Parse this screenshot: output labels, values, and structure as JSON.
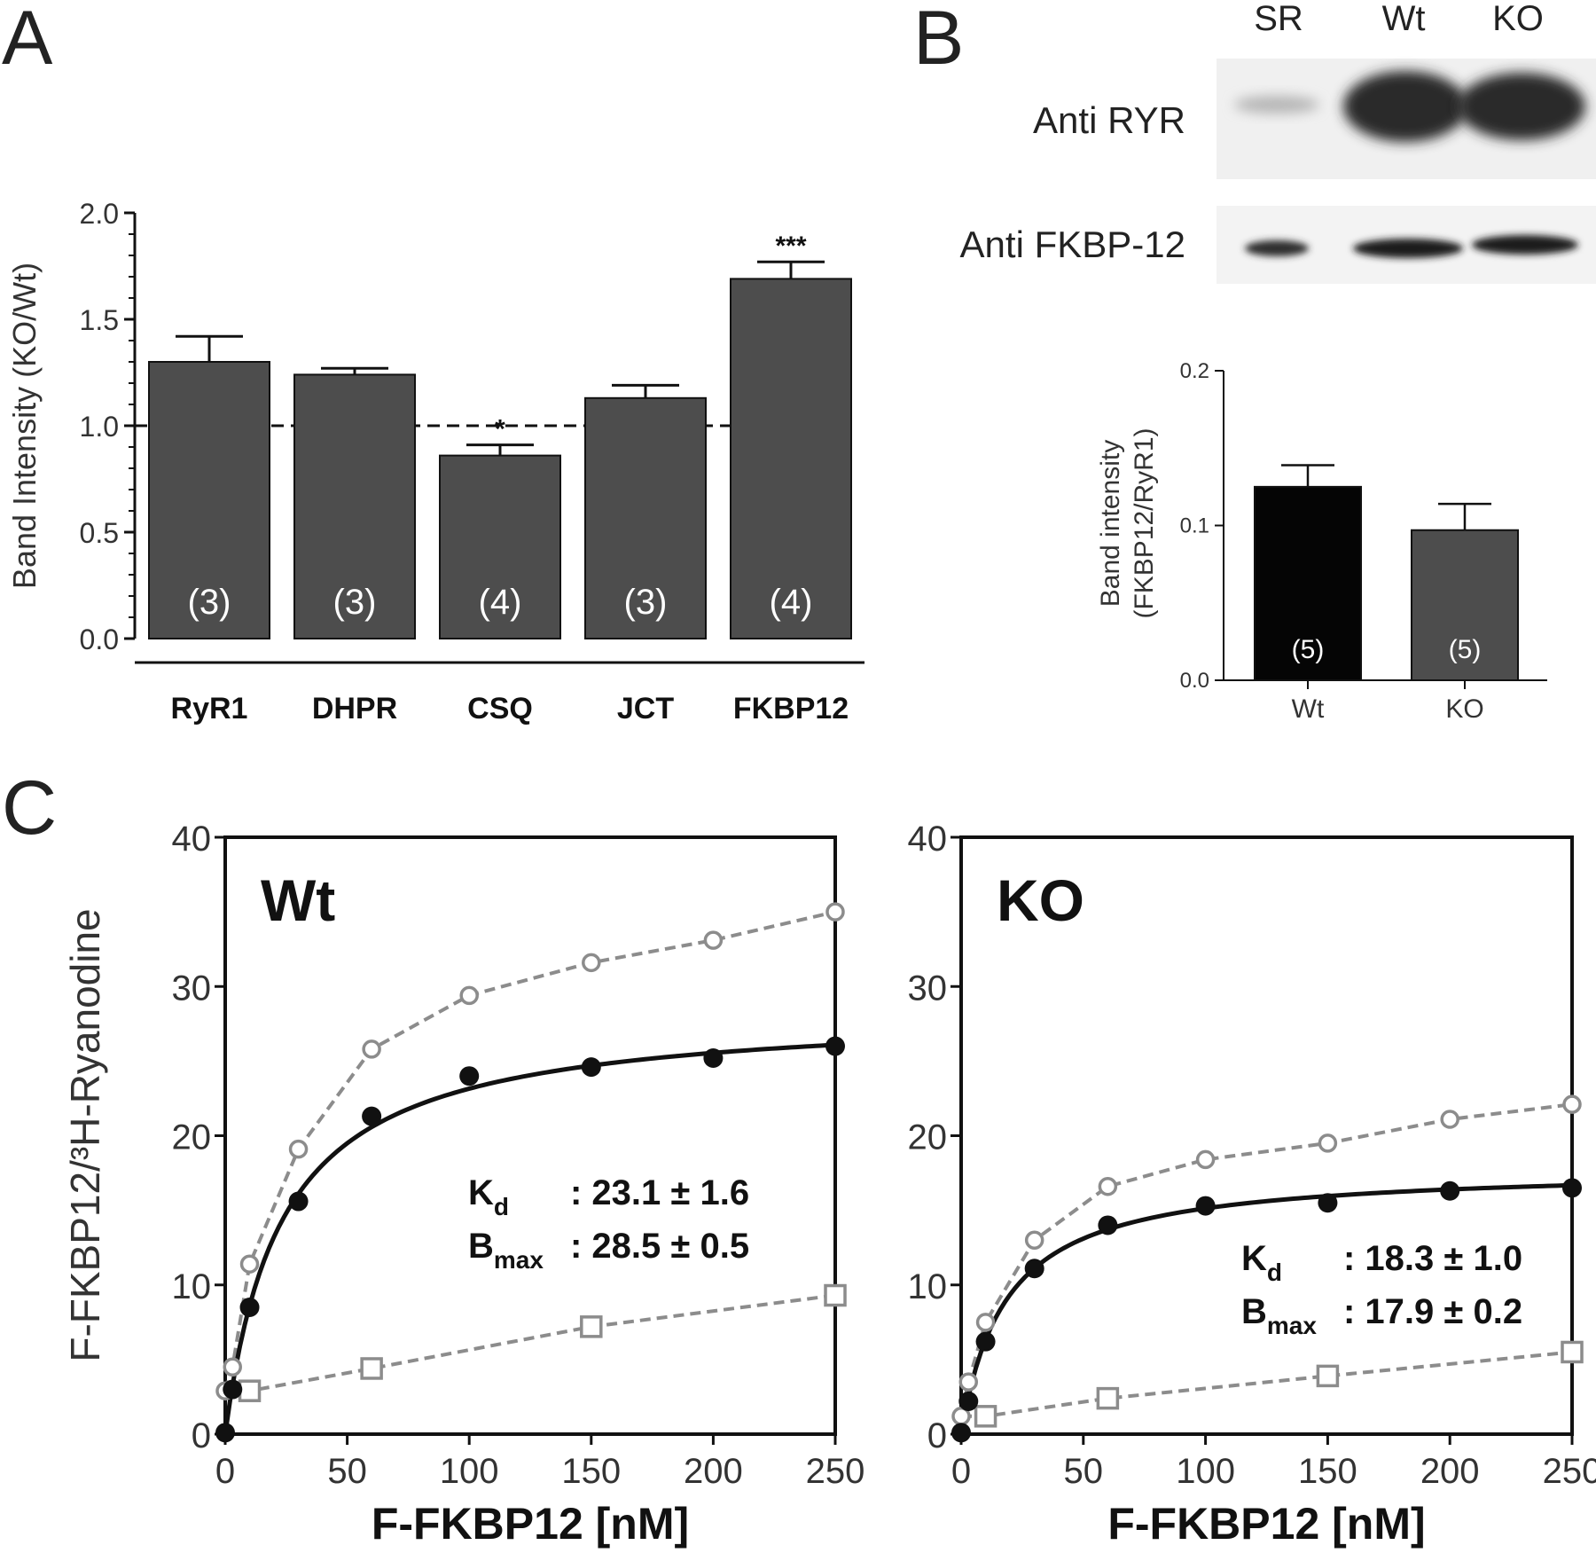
{
  "panels": {
    "a_letter": "A",
    "b_letter": "B",
    "c_letter": "C"
  },
  "blot": {
    "lanes": [
      "SR",
      "Wt",
      "KO"
    ],
    "rows": [
      "Anti RYR",
      "Anti FKBP-12"
    ]
  },
  "colors": {
    "bar_dark": "#4d4d4d",
    "bar_black": "#050505",
    "fit_line": "#111111",
    "dashed_gray": "#8c8c8c"
  },
  "chart_data": [
    {
      "id": "A",
      "type": "bar",
      "ylabel": "Band Intensity (KO/Wt)",
      "ylim": [
        0,
        2.0
      ],
      "yticks": [
        "0.0",
        "0.5",
        "1.0",
        "1.5",
        "2.0"
      ],
      "categories": [
        "RyR1",
        "DHPR",
        "CSQ",
        "JCT",
        "FKBP12"
      ],
      "values": [
        1.3,
        1.24,
        0.86,
        1.13,
        1.69
      ],
      "errors": [
        0.12,
        0.03,
        0.05,
        0.06,
        0.08
      ],
      "n_labels": [
        "(3)",
        "(3)",
        "(4)",
        "(3)",
        "(4)"
      ],
      "significance": [
        "",
        "",
        "*",
        "",
        "***"
      ],
      "reference_line": 1.0
    },
    {
      "id": "B",
      "type": "bar",
      "ylabel": "Band intensity\n(FKBP12/RyR1)",
      "ylim": [
        0,
        0.2
      ],
      "yticks": [
        "0.0",
        "0.1",
        "0.2"
      ],
      "categories": [
        "Wt",
        "KO"
      ],
      "values": [
        0.125,
        0.097
      ],
      "errors": [
        0.014,
        0.017
      ],
      "n_labels": [
        "(5)",
        "(5)"
      ]
    },
    {
      "id": "C-Wt",
      "type": "scatter",
      "title": "Wt",
      "xlabel": "F-FKBP12 [nM]",
      "ylabel": "F-FKBP12/³H-Ryanodine",
      "xlim": [
        0,
        250
      ],
      "ylim": [
        0,
        40
      ],
      "xticks": [
        "0",
        "50",
        "100",
        "150",
        "200",
        "250"
      ],
      "yticks": [
        "0",
        "10",
        "20",
        "30",
        "40"
      ],
      "fit": {
        "kd": 23.1,
        "bmax": 28.5
      },
      "annotation": {
        "kd_sym": "K",
        "kd_sub": "d",
        "kd_val": ": 23.1 ± 1.6",
        "bmax_sym": "B",
        "bmax_sub": "max",
        "bmax_val": ": 28.5 ± 0.5"
      },
      "series": [
        {
          "marker": "filled-circle",
          "x": [
            0,
            3,
            10,
            30,
            60,
            100,
            150,
            200,
            250
          ],
          "y": [
            0.1,
            3.0,
            8.5,
            15.6,
            21.3,
            24.0,
            24.6,
            25.2,
            26.0
          ]
        },
        {
          "marker": "open-circle",
          "x": [
            0,
            3,
            10,
            30,
            60,
            100,
            150,
            200,
            250
          ],
          "y": [
            2.9,
            4.5,
            11.4,
            19.1,
            25.8,
            29.4,
            31.6,
            33.1,
            35.0
          ]
        },
        {
          "marker": "open-square",
          "x": [
            10,
            60,
            150,
            250
          ],
          "y": [
            2.9,
            4.4,
            7.2,
            9.3
          ]
        }
      ]
    },
    {
      "id": "C-KO",
      "type": "scatter",
      "title": "KO",
      "xlabel": "F-FKBP12 [nM]",
      "xlim": [
        0,
        250
      ],
      "ylim": [
        0,
        40
      ],
      "xticks": [
        "0",
        "50",
        "100",
        "150",
        "200",
        "250"
      ],
      "yticks": [
        "0",
        "10",
        "20",
        "30",
        "40"
      ],
      "fit": {
        "kd": 18.3,
        "bmax": 17.9
      },
      "annotation": {
        "kd_sym": "K",
        "kd_sub": "d",
        "kd_val": ": 18.3 ± 1.0",
        "bmax_sym": "B",
        "bmax_sub": "max",
        "bmax_val": ": 17.9 ± 0.2"
      },
      "series": [
        {
          "marker": "filled-circle",
          "x": [
            0,
            3,
            10,
            30,
            60,
            100,
            150,
            200,
            250
          ],
          "y": [
            0.1,
            2.2,
            6.2,
            11.1,
            14.0,
            15.3,
            15.5,
            16.3,
            16.5
          ]
        },
        {
          "marker": "open-circle",
          "x": [
            0,
            3,
            10,
            30,
            60,
            100,
            150,
            200,
            250
          ],
          "y": [
            1.2,
            3.5,
            7.5,
            13.0,
            16.6,
            18.4,
            19.5,
            21.1,
            22.1
          ]
        },
        {
          "marker": "open-square",
          "x": [
            10,
            60,
            150,
            250
          ],
          "y": [
            1.2,
            2.4,
            3.9,
            5.5
          ]
        }
      ]
    }
  ]
}
